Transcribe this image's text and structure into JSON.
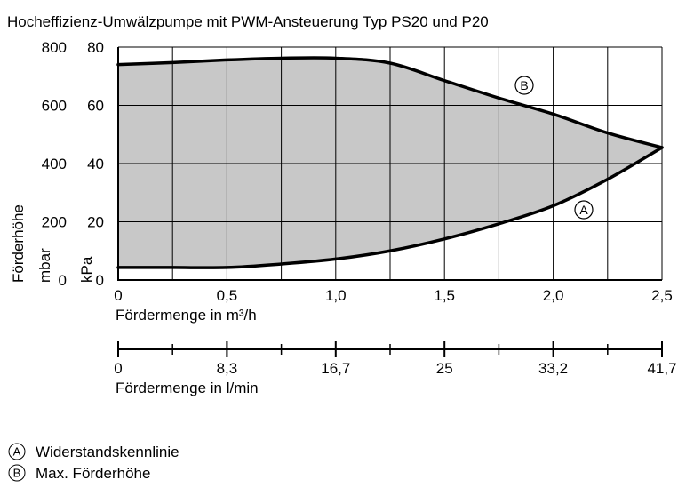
{
  "chart_data": {
    "type": "area",
    "title": "Hocheffizienz-Umwälzpumpe mit PWM-Ansteuerung Typ PS20 und P20",
    "xlabel": "Fördermenge in m³/h",
    "x2label": "Fördermenge in l/min",
    "ylabel": "Förderhöhe",
    "y_unit_left": "mbar",
    "y_unit_right": "kPa",
    "xlim": [
      0,
      2.5
    ],
    "ylim": [
      0,
      80
    ],
    "x_ticks": [
      "0",
      "0,5",
      "1,0",
      "1,5",
      "2,0",
      "2,5"
    ],
    "x_tick_values": [
      0,
      0.5,
      1.0,
      1.5,
      2.0,
      2.5
    ],
    "x2_ticks": [
      "0",
      "8,3",
      "16,7",
      "25",
      "33,2",
      "41,7"
    ],
    "x2_tick_values": [
      0,
      0.5,
      1.0,
      1.5,
      2.0,
      2.5
    ],
    "y_ticks_mbar": [
      "0",
      "200",
      "400",
      "600",
      "800"
    ],
    "y_ticks_kpa": [
      "0",
      "20",
      "40",
      "60",
      "80"
    ],
    "y_tick_values": [
      0,
      20,
      40,
      60,
      80
    ],
    "grid": true,
    "fill_color": "#c8c8c8",
    "line_color": "#000000",
    "series": [
      {
        "id": "B",
        "marker": "B",
        "name": "Max. Förderhöhe",
        "x": [
          0,
          0.25,
          0.5,
          0.75,
          1.0,
          1.25,
          1.5,
          1.75,
          2.0,
          2.25,
          2.5
        ],
        "y": [
          74,
          74.7,
          75.6,
          76.2,
          76.2,
          74.5,
          68.5,
          62.5,
          57,
          50.5,
          45.5
        ]
      },
      {
        "id": "A",
        "marker": "A",
        "name": "Widerstandskennlinie",
        "x": [
          0,
          0.25,
          0.5,
          0.75,
          1.0,
          1.25,
          1.5,
          1.75,
          2.0,
          2.25,
          2.5
        ],
        "y": [
          4.3,
          4.3,
          4.3,
          5.5,
          7.2,
          10,
          14.1,
          19.3,
          25.5,
          34.6,
          45.5
        ]
      }
    ]
  },
  "legend": [
    {
      "marker": "A",
      "label": "Widerstandskennlinie"
    },
    {
      "marker": "B",
      "label": "Max. Förderhöhe"
    }
  ]
}
